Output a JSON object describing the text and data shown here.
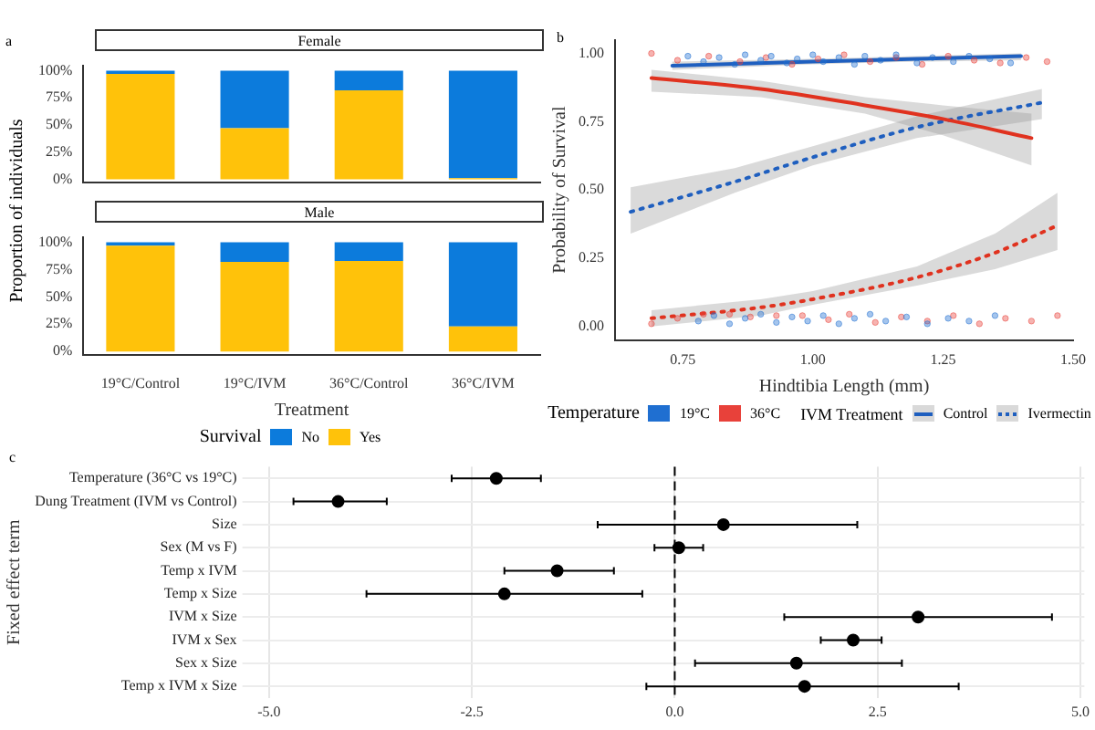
{
  "chart_data": [
    {
      "type": "bar",
      "title": "Female",
      "ylabel": "Proportion of individuals",
      "annotations": [
        "a"
      ],
      "categories": [
        null,
        null,
        null,
        null
      ],
      "stacked": true,
      "tick_labels": "y",
      "series": [
        {
          "color": "#ffc20a",
          "values": [
            97,
            47,
            82,
            1
          ]
        },
        {
          "color": "#0c7bdc",
          "values": [
            3,
            53,
            18,
            99
          ]
        }
      ],
      "ylim": [
        -3,
        105
      ],
      "yticks": [
        {
          "value": 0,
          "label": "0%"
        },
        {
          "value": 25,
          "label": "25%"
        },
        {
          "value": 50,
          "label": "50%"
        },
        {
          "value": 75,
          "label": "75%"
        },
        {
          "value": 100,
          "label": "100%"
        }
      ]
    },
    {
      "type": "bar",
      "title": "Male",
      "xlabel": "Treatment",
      "categories": [
        "19°C/Control",
        "19°C/IVM",
        "36°C/Control",
        "36°C/IVM"
      ],
      "stacked": true,
      "legend": "bottom",
      "legend_title": "Survival",
      "series": [
        {
          "name": "Yes",
          "color": "#ffc20a",
          "values": [
            97,
            82,
            83,
            23
          ]
        },
        {
          "name": "No",
          "color": "#0c7bdc",
          "values": [
            3,
            18,
            17,
            77
          ]
        }
      ],
      "ylim": [
        -3,
        105
      ],
      "yticks": [
        {
          "value": 0,
          "label": "0%"
        },
        {
          "value": 25,
          "label": "25%"
        },
        {
          "value": 50,
          "label": "50%"
        },
        {
          "value": 75,
          "label": "75%"
        },
        {
          "value": 100,
          "label": "100%"
        }
      ]
    },
    {
      "type": "line",
      "xlabel": "Hindtibia Length (mm)",
      "ylabel": "Probability of Survival",
      "annotations": [
        "b",
        "IVM Treatment"
      ],
      "legend": "bottom",
      "legend_title": "Temperature",
      "xlim": [
        0.62,
        1.5
      ],
      "xticks": [
        {
          "value": 0.75,
          "label": "0.75"
        },
        {
          "value": 1,
          "label": "1.00"
        },
        {
          "value": 1.25,
          "label": "1.25"
        },
        {
          "value": 1.5,
          "label": "1.50"
        }
      ],
      "ylim": [
        -0.05,
        1.05
      ],
      "yticks": [
        {
          "value": 0,
          "label": "0.00"
        },
        {
          "value": 0.25,
          "label": "0.25"
        },
        {
          "value": 0.5,
          "label": "0.50"
        },
        {
          "value": 0.75,
          "label": "0.75"
        },
        {
          "value": 1,
          "label": "1.00"
        }
      ],
      "series": [
        {
          "type": "scatter",
          "name": "19°C",
          "color": "#1f6fd1",
          "marker": "circle",
          "x": [
            0.76,
            0.79,
            0.82,
            0.85,
            0.87,
            0.9,
            0.92,
            0.95,
            0.97,
            1.0,
            1.02,
            1.05,
            1.08,
            1.1,
            1.13,
            1.16,
            1.2,
            1.23,
            1.27,
            1.3,
            1.34,
            1.38,
            0.78,
            0.81,
            0.84,
            0.87,
            0.9,
            0.93,
            0.96,
            0.99,
            1.02,
            1.05,
            1.08,
            1.11,
            1.14,
            1.18,
            1.22,
            1.26,
            1.3,
            1.35
          ],
          "values": [
            0.99,
            0.97,
            0.985,
            0.96,
            0.995,
            0.975,
            0.99,
            0.965,
            0.98,
            0.995,
            0.97,
            0.985,
            0.96,
            0.99,
            0.975,
            0.995,
            0.965,
            0.985,
            0.97,
            0.99,
            0.98,
            0.965,
            0.02,
            0.04,
            0.01,
            0.03,
            0.045,
            0.015,
            0.035,
            0.02,
            0.04,
            0.01,
            0.03,
            0.045,
            0.02,
            0.035,
            0.01,
            0.03,
            0.02,
            0.04
          ]
        },
        {
          "type": "scatter",
          "name": "36°C",
          "color": "#e8413a",
          "marker": "circle",
          "x": [
            0.69,
            0.74,
            0.8,
            0.86,
            0.91,
            0.96,
            1.01,
            1.06,
            1.11,
            1.16,
            1.21,
            1.26,
            1.31,
            1.36,
            1.41,
            1.45,
            0.69,
            0.74,
            0.79,
            0.84,
            0.88,
            0.93,
            0.98,
            1.03,
            1.07,
            1.12,
            1.17,
            1.22,
            1.27,
            1.32,
            1.37,
            1.42,
            1.47
          ],
          "values": [
            1.0,
            0.975,
            0.99,
            0.97,
            0.985,
            0.96,
            0.98,
            0.995,
            0.97,
            0.985,
            0.96,
            0.99,
            0.975,
            0.965,
            0.985,
            0.97,
            0.01,
            0.03,
            0.045,
            0.045,
            0.035,
            0.04,
            0.04,
            0.025,
            0.045,
            0.015,
            0.035,
            0.02,
            0.04,
            0.01,
            0.03,
            0.02,
            0.04
          ]
        },
        {
          "type": "line",
          "name": "Control",
          "color": "#1f5fbf",
          "line_style": "solid",
          "marker": "none",
          "x": [
            0.73,
            1.0,
            1.2,
            1.4
          ],
          "values": [
            0.955,
            0.97,
            0.98,
            0.99
          ],
          "lower": [
            0.94,
            0.96,
            0.97,
            0.975
          ],
          "upper": [
            0.97,
            0.98,
            0.99,
            1.0
          ]
        },
        {
          "type": "line",
          "color": "#e0321f",
          "line_style": "solid",
          "marker": "none",
          "x": [
            0.69,
            0.9,
            1.1,
            1.25,
            1.42
          ],
          "values": [
            0.91,
            0.87,
            0.81,
            0.76,
            0.69
          ],
          "lower": [
            0.86,
            0.84,
            0.78,
            0.7,
            0.59
          ],
          "upper": [
            0.94,
            0.9,
            0.84,
            0.81,
            0.78
          ]
        },
        {
          "type": "line",
          "name": "Ivermectin",
          "color": "#1f5fbf",
          "line_style": "dotted",
          "marker": "none",
          "x": [
            0.65,
            0.85,
            1.0,
            1.2,
            1.44
          ],
          "values": [
            0.42,
            0.53,
            0.62,
            0.73,
            0.82
          ],
          "lower": [
            0.34,
            0.49,
            0.59,
            0.69,
            0.76
          ],
          "upper": [
            0.51,
            0.58,
            0.66,
            0.77,
            0.87
          ]
        },
        {
          "type": "line",
          "color": "#e0321f",
          "line_style": "dotted",
          "marker": "none",
          "x": [
            0.69,
            0.9,
            1.0,
            1.2,
            1.35,
            1.47
          ],
          "values": [
            0.03,
            0.07,
            0.1,
            0.18,
            0.27,
            0.37
          ],
          "lower": [
            0.0,
            0.04,
            0.08,
            0.15,
            0.21,
            0.28
          ],
          "upper": [
            0.06,
            0.1,
            0.13,
            0.22,
            0.34,
            0.49
          ]
        }
      ]
    },
    {
      "type": "scatter",
      "orientation": "horizontal",
      "ylabel": "Fixed effect term",
      "annotations": [
        "c"
      ],
      "grid": true,
      "marker": "circle",
      "color": "#000000",
      "categories": [
        "Temperature (36°C vs 19°C)",
        "Dung Treatment (IVM vs Control)",
        "Size",
        "Sex (M vs F)",
        "Temp x IVM",
        "Temp x Size",
        "IVM x Size",
        "IVM x Sex",
        "Sex x Size",
        "Temp x IVM x Size"
      ],
      "values": [
        -2.2,
        -4.15,
        0.6,
        0.05,
        -1.45,
        -2.1,
        3.0,
        2.2,
        1.5,
        1.6
      ],
      "errors": [
        [
          -2.75,
          -1.65
        ],
        [
          -4.7,
          -3.55
        ],
        [
          -0.95,
          2.25
        ],
        [
          -0.25,
          0.35
        ],
        [
          -2.1,
          -0.75
        ],
        [
          -3.8,
          -0.4
        ],
        [
          1.35,
          4.65
        ],
        [
          1.8,
          2.55
        ],
        [
          0.25,
          2.8
        ],
        [
          -0.35,
          3.5
        ]
      ],
      "xlim": [
        -5.15,
        5.05
      ],
      "xticks": [
        {
          "value": -5,
          "label": "-5.0"
        },
        {
          "value": -2.5,
          "label": "-2.5"
        },
        {
          "value": 0,
          "label": "0.0"
        },
        {
          "value": 2.5,
          "label": "2.5"
        },
        {
          "value": 5,
          "label": "5.0"
        }
      ],
      "ref_lines": [
        {
          "axis": "x",
          "value": 0,
          "line_style": "dashed",
          "color": "#000000"
        }
      ]
    }
  ]
}
